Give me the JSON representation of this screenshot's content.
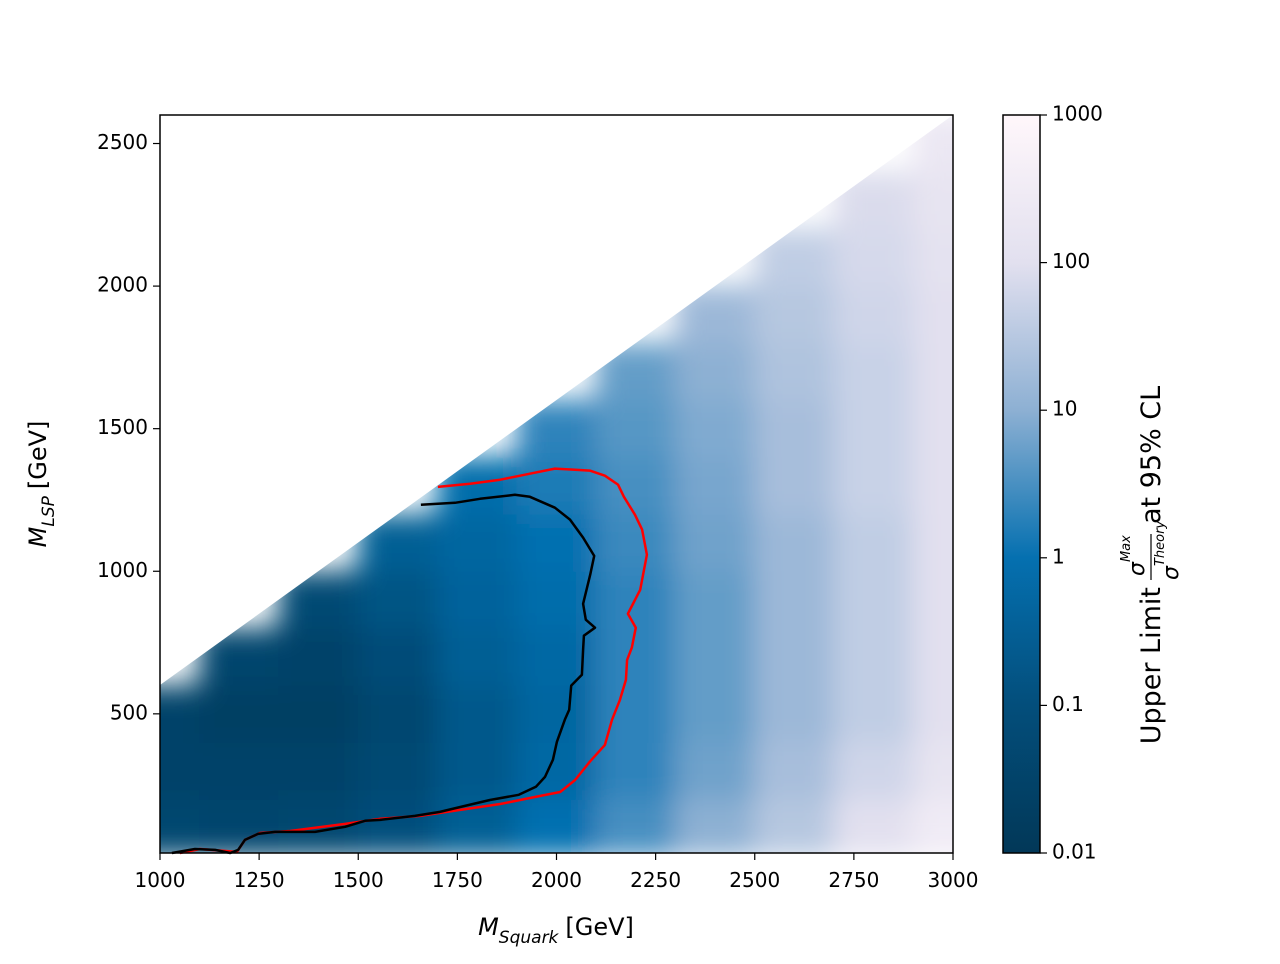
{
  "chart_data": {
    "type": "heatmap",
    "xlabel": {
      "main": "M",
      "sub": "Squark",
      "rest": "[GeV]"
    },
    "ylabel": {
      "main": "M",
      "sub": "LSP",
      "rest": "[GeV]"
    },
    "colorbar_label": {
      "before": "Upper Limit",
      "num": "σ",
      "num_sub": "Max",
      "den": "σ",
      "den_sub": "Theory",
      "after": "at 95% CL"
    },
    "xlim": [
      1000,
      3000
    ],
    "xticks": [
      1000,
      1250,
      1500,
      1750,
      2000,
      2250,
      2500,
      2750,
      3000
    ],
    "ylim": [
      12,
      2600
    ],
    "yticks": [
      500,
      1000,
      1500,
      2000,
      2500
    ],
    "clim": [
      0.01,
      1000
    ],
    "cticks": [
      0.01,
      0.1,
      1,
      10,
      100,
      1000
    ],
    "color_log": true,
    "colormap": "PuBu_r",
    "x": [
      1000,
      1200,
      1400,
      1600,
      1800,
      2000,
      2200,
      2400,
      2600,
      2800,
      3000
    ],
    "y": [
      100,
      300,
      500,
      700,
      900,
      1100,
      1300,
      1500,
      1700,
      1900,
      2100,
      2300,
      2500
    ],
    "z": [
      [
        0.05,
        0.04,
        0.05,
        0.1,
        0.3,
        1,
        3,
        10,
        30,
        100,
        300
      ],
      [
        0.03,
        0.03,
        0.03,
        0.06,
        0.2,
        0.6,
        2,
        6,
        20,
        60,
        150
      ],
      [
        0.03,
        0.02,
        0.02,
        0.05,
        0.2,
        0.5,
        2,
        5,
        15,
        40,
        100
      ],
      [
        null,
        0.04,
        0.03,
        0.08,
        0.3,
        0.6,
        2,
        5,
        15,
        40,
        100
      ],
      [
        null,
        null,
        0.06,
        0.15,
        0.4,
        0.8,
        2,
        5,
        15,
        40,
        100
      ],
      [
        null,
        null,
        null,
        0.3,
        0.5,
        1,
        2.5,
        6,
        15,
        40,
        100
      ],
      [
        null,
        null,
        null,
        null,
        0.8,
        1.5,
        3,
        7,
        20,
        50,
        100
      ],
      [
        null,
        null,
        null,
        null,
        null,
        2,
        4,
        8,
        20,
        50,
        100
      ],
      [
        null,
        null,
        null,
        null,
        null,
        null,
        5,
        10,
        25,
        50,
        100
      ],
      [
        null,
        null,
        null,
        null,
        null,
        null,
        null,
        15,
        30,
        60,
        100
      ],
      [
        null,
        null,
        null,
        null,
        null,
        null,
        null,
        null,
        40,
        70,
        120
      ],
      [
        null,
        null,
        null,
        null,
        null,
        null,
        null,
        null,
        null,
        80,
        150
      ],
      [
        null,
        null,
        null,
        null,
        null,
        null,
        null,
        null,
        null,
        null,
        200
      ]
    ],
    "contours": [
      {
        "color": "#ff0000",
        "x": [
          1701,
          1782,
          1858,
          1933,
          1996,
          2047,
          2084,
          2122,
          2155,
          2170,
          2198,
          2216,
          2228,
          2211,
          2180,
          2200,
          2190,
          2178,
          2175,
          2160,
          2140,
          2122,
          2084,
          2047,
          2009,
          1958,
          1858,
          1757,
          1656,
          1555,
          1467,
          1328,
          1252,
          1214,
          1194,
          1101,
          1050
        ],
        "y": [
          1296,
          1307,
          1321,
          1342,
          1360,
          1356,
          1353,
          1335,
          1304,
          1261,
          1198,
          1146,
          1058,
          935,
          851,
          802,
          732,
          689,
          619,
          549,
          479,
          391,
          332,
          268,
          226,
          212,
          184,
          163,
          142,
          132,
          114,
          89,
          82,
          58,
          16,
          26,
          12
        ]
      },
      {
        "color": "#000000",
        "x": [
          1658,
          1744,
          1807,
          1895,
          1933,
          1996,
          2034,
          2067,
          2095,
          2085,
          2067,
          2074,
          2097,
          2069,
          2067,
          2064,
          2037,
          2032,
          2021,
          2001,
          1991,
          1971,
          1948,
          1905,
          1832,
          1769,
          1706,
          1643,
          1555,
          1517,
          1467,
          1391,
          1290,
          1247,
          1214,
          1197,
          1177,
          1139,
          1088,
          1030
        ],
        "y": [
          1233,
          1240,
          1254,
          1268,
          1261,
          1223,
          1181,
          1118,
          1054,
          988,
          886,
          830,
          802,
          774,
          725,
          637,
          599,
          514,
          479,
          402,
          339,
          279,
          244,
          216,
          198,
          177,
          156,
          142,
          128,
          125,
          104,
          86,
          86,
          79,
          58,
          23,
          12,
          23,
          26,
          12
        ]
      }
    ]
  }
}
